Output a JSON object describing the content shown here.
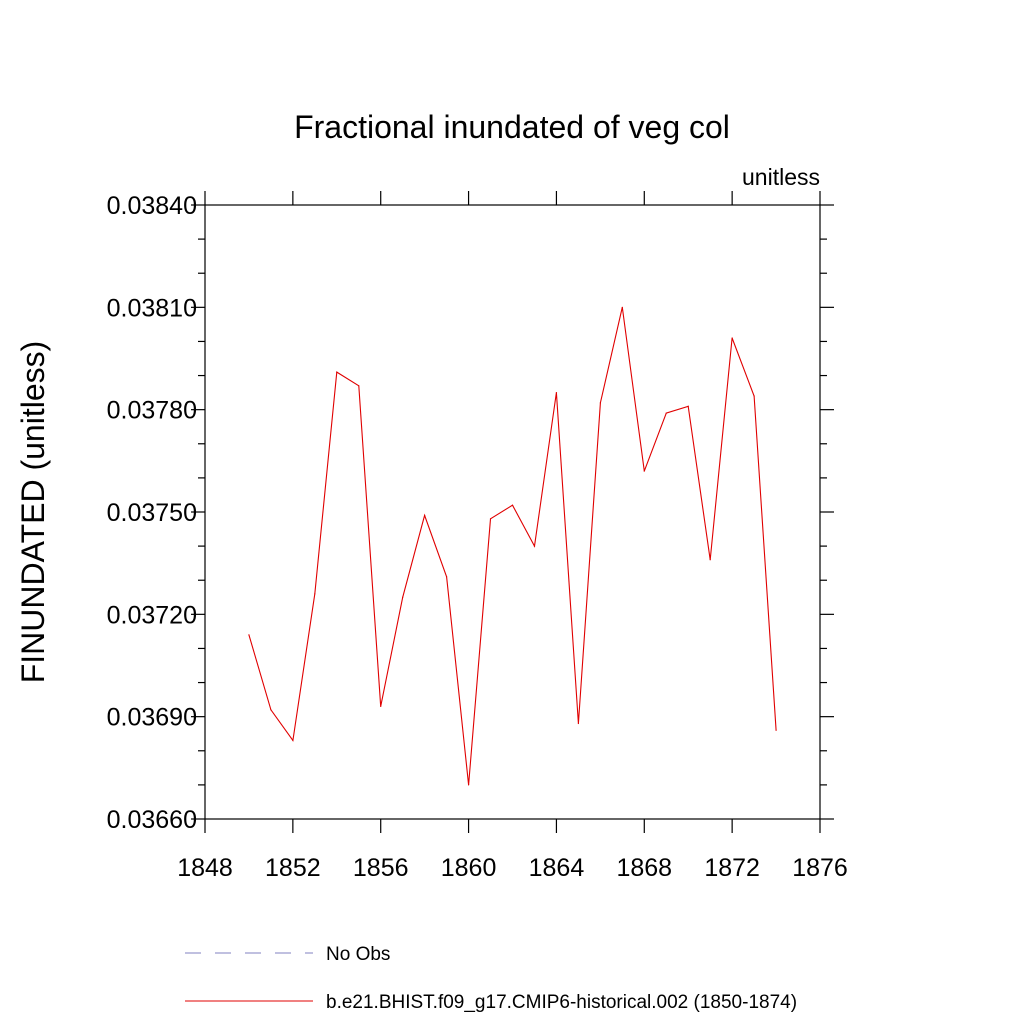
{
  "chart_data": {
    "type": "line",
    "title": "Fractional inundated of veg col",
    "units_label": "unitless",
    "ylabel": "FINUNDATED  (unitless)",
    "xlabel": "",
    "xlim": [
      1848,
      1876
    ],
    "ylim": [
      0.0366,
      0.0384
    ],
    "x_ticks": [
      1848,
      1852,
      1856,
      1860,
      1864,
      1868,
      1872,
      1876
    ],
    "x_tick_labels": [
      "1848",
      "1852",
      "1856",
      "1860",
      "1864",
      "1868",
      "1872",
      "1876"
    ],
    "y_ticks": [
      0.0366,
      0.0369,
      0.0372,
      0.0375,
      0.0378,
      0.0381,
      0.0384
    ],
    "y_tick_labels": [
      "0.03660",
      "0.03690",
      "0.03720",
      "0.03750",
      "0.03780",
      "0.03810",
      "0.03840"
    ],
    "grid": false,
    "legend_position": "bottom",
    "series": [
      {
        "name": "No Obs",
        "color": "#8080c0",
        "dashed": true,
        "x": [],
        "y": []
      },
      {
        "name": "b.e21.BHIST.f09_g17.CMIP6-historical.002 (1850-1874)",
        "color": "#e00000",
        "dashed": false,
        "x": [
          1850,
          1851,
          1852,
          1853,
          1854,
          1855,
          1856,
          1857,
          1858,
          1859,
          1860,
          1861,
          1862,
          1863,
          1864,
          1865,
          1866,
          1867,
          1868,
          1869,
          1870,
          1871,
          1872,
          1873,
          1874
        ],
        "y": [
          0.03714,
          0.03692,
          0.03683,
          0.03726,
          0.03791,
          0.03787,
          0.03693,
          0.03725,
          0.03749,
          0.03731,
          0.0367,
          0.03748,
          0.03752,
          0.0374,
          0.03785,
          0.03688,
          0.03782,
          0.0381,
          0.03762,
          0.03779,
          0.03781,
          0.03736,
          0.03801,
          0.03784,
          0.03686
        ]
      }
    ]
  }
}
